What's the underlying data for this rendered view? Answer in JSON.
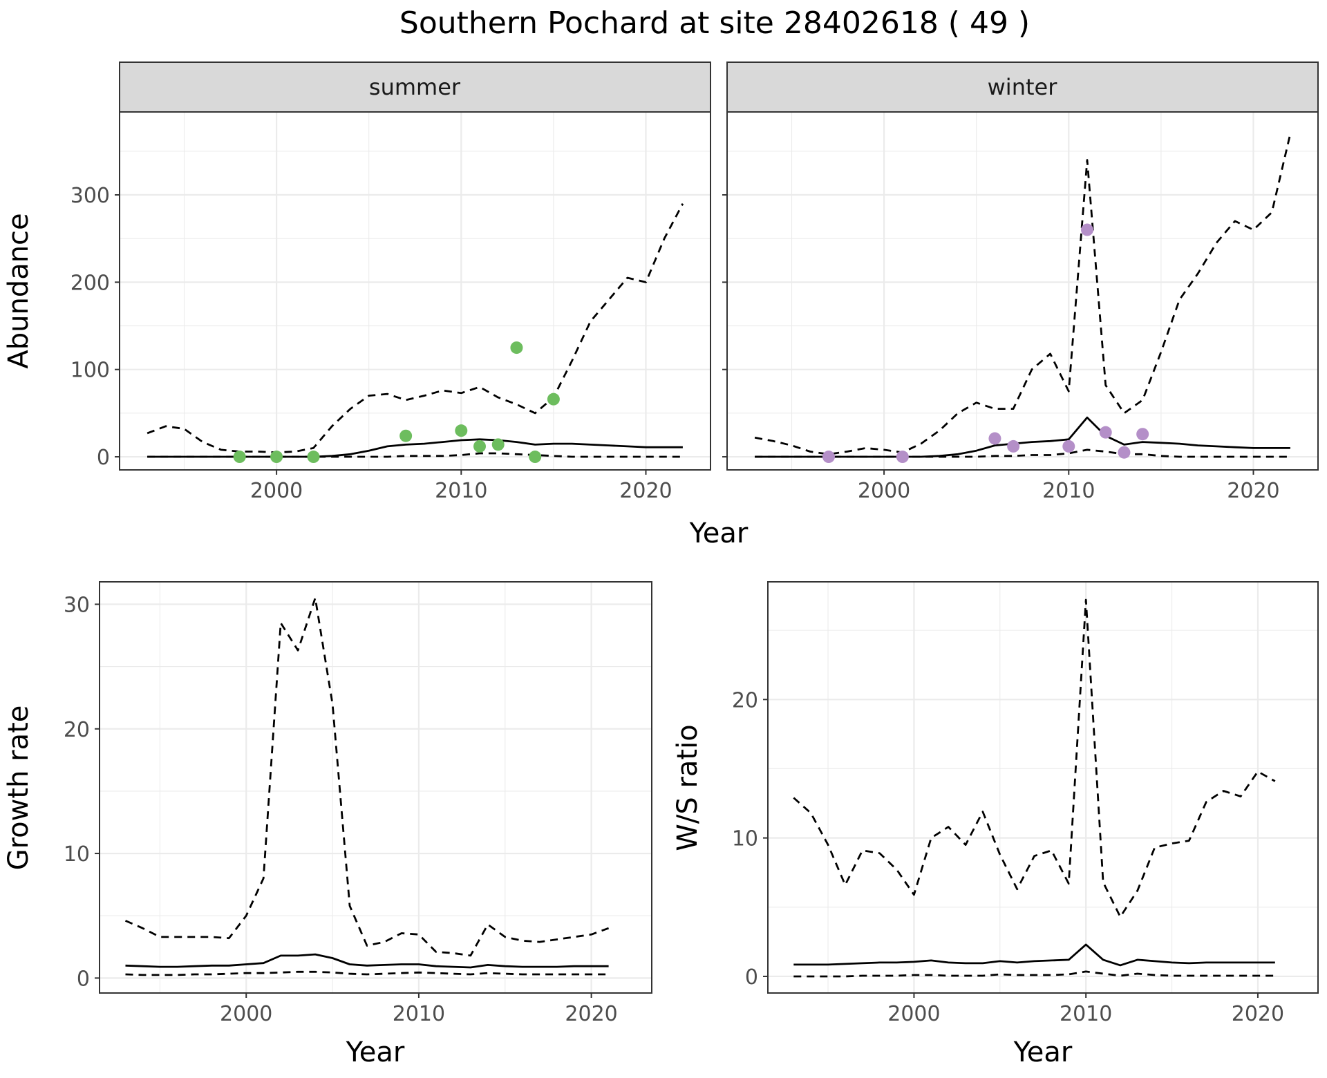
{
  "title": "Southern Pochard at site 28402618 ( 49 )",
  "colors": {
    "summer_points": "#6dbd5e",
    "winter_points": "#b48fc8",
    "lines": "#000000",
    "grid": "#ebebeb",
    "strip_fill": "#d9d9d9",
    "panel_border": "#333333"
  },
  "chart_data": [
    {
      "type": "line",
      "id": "abundance-summer",
      "strip_label": "summer",
      "ylabel": "Abundance",
      "xlabel": "Year",
      "xlim": [
        1991.5,
        2023.5
      ],
      "ylim": [
        -15,
        395
      ],
      "x_ticks": [
        2000,
        2010,
        2020
      ],
      "y_ticks": [
        0,
        100,
        200,
        300
      ],
      "show_y_tick_labels": true,
      "series": [
        {
          "role": "mean",
          "style": "solid",
          "x": [
            1993,
            1994,
            1995,
            1996,
            1997,
            1998,
            1999,
            2000,
            2001,
            2002,
            2003,
            2004,
            2005,
            2006,
            2007,
            2008,
            2009,
            2010,
            2011,
            2012,
            2013,
            2014,
            2015,
            2016,
            2017,
            2018,
            2019,
            2020,
            2021,
            2022
          ],
          "y": [
            0,
            0,
            0,
            0,
            0,
            0,
            0,
            0,
            0,
            0,
            1,
            3,
            7,
            12,
            14,
            15,
            17,
            19,
            20,
            19,
            17,
            14,
            15,
            15,
            14,
            13,
            12,
            11,
            11,
            11
          ]
        },
        {
          "role": "upper",
          "style": "dashed",
          "x": [
            1993,
            1994,
            1995,
            1996,
            1997,
            1998,
            1999,
            2000,
            2001,
            2002,
            2003,
            2004,
            2005,
            2006,
            2007,
            2008,
            2009,
            2010,
            2011,
            2012,
            2013,
            2014,
            2015,
            2016,
            2017,
            2018,
            2019,
            2020,
            2021,
            2022
          ],
          "y": [
            27,
            35,
            32,
            17,
            8,
            6,
            6,
            5,
            6,
            10,
            35,
            55,
            70,
            72,
            65,
            70,
            76,
            73,
            80,
            68,
            60,
            50,
            68,
            110,
            155,
            180,
            205,
            200,
            250,
            290
          ]
        },
        {
          "role": "lower",
          "style": "dashed",
          "x": [
            1993,
            1994,
            1995,
            1996,
            1997,
            1998,
            1999,
            2000,
            2001,
            2002,
            2003,
            2004,
            2005,
            2006,
            2007,
            2008,
            2009,
            2010,
            2011,
            2012,
            2013,
            2014,
            2015,
            2016,
            2017,
            2018,
            2019,
            2020,
            2021,
            2022
          ],
          "y": [
            0,
            0,
            0,
            0,
            0,
            0,
            0,
            0,
            0,
            0,
            0,
            0,
            0,
            0,
            1,
            1,
            1,
            2,
            4,
            4,
            3,
            2,
            1,
            0,
            0,
            0,
            0,
            0,
            0,
            0
          ]
        }
      ],
      "points": {
        "x": [
          1998,
          2000,
          2002,
          2007,
          2010,
          2011,
          2012,
          2013,
          2014,
          2015
        ],
        "y": [
          0,
          0,
          0,
          24,
          30,
          12,
          14,
          125,
          0,
          66
        ]
      }
    },
    {
      "type": "line",
      "id": "abundance-winter",
      "strip_label": "winter",
      "xlabel": "Year",
      "xlim": [
        1991.5,
        2023.5
      ],
      "ylim": [
        -15,
        395
      ],
      "x_ticks": [
        2000,
        2010,
        2020
      ],
      "y_ticks": [
        0,
        100,
        200,
        300
      ],
      "show_y_tick_labels": false,
      "series": [
        {
          "role": "mean",
          "style": "solid",
          "x": [
            1993,
            1994,
            1995,
            1996,
            1997,
            1998,
            1999,
            2000,
            2001,
            2002,
            2003,
            2004,
            2005,
            2006,
            2007,
            2008,
            2009,
            2010,
            2011,
            2012,
            2013,
            2014,
            2015,
            2016,
            2017,
            2018,
            2019,
            2020,
            2021,
            2022
          ],
          "y": [
            0,
            0,
            0,
            0,
            0,
            0,
            0,
            0,
            0,
            0,
            1,
            3,
            7,
            13,
            15,
            17,
            18,
            20,
            45,
            24,
            14,
            17,
            16,
            15,
            13,
            12,
            11,
            10,
            10,
            10
          ]
        },
        {
          "role": "upper",
          "style": "dashed",
          "x": [
            1993,
            1994,
            1995,
            1996,
            1997,
            1998,
            1999,
            2000,
            2001,
            2002,
            2003,
            2004,
            2005,
            2006,
            2007,
            2008,
            2009,
            2010,
            2011,
            2012,
            2013,
            2014,
            2015,
            2016,
            2017,
            2018,
            2019,
            2020,
            2021,
            2022
          ],
          "y": [
            22,
            18,
            13,
            6,
            3,
            6,
            10,
            8,
            5,
            15,
            30,
            50,
            62,
            55,
            55,
            100,
            118,
            75,
            340,
            82,
            50,
            65,
            120,
            180,
            210,
            245,
            270,
            260,
            280,
            370
          ]
        },
        {
          "role": "lower",
          "style": "dashed",
          "x": [
            1993,
            1994,
            1995,
            1996,
            1997,
            1998,
            1999,
            2000,
            2001,
            2002,
            2003,
            2004,
            2005,
            2006,
            2007,
            2008,
            2009,
            2010,
            2011,
            2012,
            2013,
            2014,
            2015,
            2016,
            2017,
            2018,
            2019,
            2020,
            2021,
            2022
          ],
          "y": [
            0,
            0,
            0,
            0,
            0,
            0,
            0,
            0,
            0,
            0,
            0,
            0,
            0,
            1,
            1,
            2,
            2,
            4,
            8,
            6,
            3,
            3,
            1,
            0,
            0,
            0,
            0,
            0,
            0,
            0
          ]
        }
      ],
      "points": {
        "x": [
          1997,
          2001,
          2006,
          2007,
          2010,
          2011,
          2012,
          2013,
          2014
        ],
        "y": [
          0,
          0,
          21,
          12,
          12,
          260,
          28,
          5,
          26
        ]
      }
    },
    {
      "type": "line",
      "id": "growth-rate",
      "ylabel": "Growth rate",
      "xlabel": "Year",
      "xlim": [
        1991.5,
        2023.5
      ],
      "ylim": [
        -1.2,
        31.8
      ],
      "x_ticks": [
        2000,
        2010,
        2020
      ],
      "y_ticks": [
        0,
        10,
        20,
        30
      ],
      "show_y_tick_labels": true,
      "series": [
        {
          "role": "mean",
          "style": "solid",
          "x": [
            1993,
            1994,
            1995,
            1996,
            1997,
            1998,
            1999,
            2000,
            2001,
            2002,
            2003,
            2004,
            2005,
            2006,
            2007,
            2008,
            2009,
            2010,
            2011,
            2012,
            2013,
            2014,
            2015,
            2016,
            2017,
            2018,
            2019,
            2020,
            2021
          ],
          "y": [
            1.0,
            0.95,
            0.9,
            0.9,
            0.95,
            1.0,
            1.0,
            1.1,
            1.2,
            1.8,
            1.8,
            1.9,
            1.6,
            1.1,
            1.0,
            1.05,
            1.1,
            1.1,
            0.95,
            0.9,
            0.85,
            1.05,
            0.95,
            0.9,
            0.9,
            0.9,
            0.95,
            0.95,
            0.95
          ]
        },
        {
          "role": "upper",
          "style": "dashed",
          "x": [
            1993,
            1994,
            1995,
            1996,
            1997,
            1998,
            1999,
            2000,
            2001,
            2002,
            2003,
            2004,
            2005,
            2006,
            2007,
            2008,
            2009,
            2010,
            2011,
            2012,
            2013,
            2014,
            2015,
            2016,
            2017,
            2018,
            2019,
            2020,
            2021
          ],
          "y": [
            4.6,
            4.0,
            3.3,
            3.3,
            3.3,
            3.3,
            3.2,
            5.0,
            8.0,
            28.5,
            26.3,
            30.5,
            22.0,
            5.8,
            2.6,
            2.9,
            3.6,
            3.5,
            2.1,
            2.0,
            1.8,
            4.3,
            3.3,
            3.0,
            2.9,
            3.1,
            3.3,
            3.5,
            4.0
          ]
        },
        {
          "role": "lower",
          "style": "dashed",
          "x": [
            1993,
            1994,
            1995,
            1996,
            1997,
            1998,
            1999,
            2000,
            2001,
            2002,
            2003,
            2004,
            2005,
            2006,
            2007,
            2008,
            2009,
            2010,
            2011,
            2012,
            2013,
            2014,
            2015,
            2016,
            2017,
            2018,
            2019,
            2020,
            2021
          ],
          "y": [
            0.3,
            0.25,
            0.25,
            0.25,
            0.3,
            0.3,
            0.35,
            0.4,
            0.4,
            0.45,
            0.5,
            0.5,
            0.45,
            0.35,
            0.3,
            0.35,
            0.4,
            0.45,
            0.4,
            0.35,
            0.3,
            0.4,
            0.35,
            0.3,
            0.3,
            0.3,
            0.3,
            0.3,
            0.3
          ]
        }
      ]
    },
    {
      "type": "line",
      "id": "ws-ratio",
      "ylabel": "W/S ratio",
      "xlabel": "Year",
      "xlim": [
        1991.5,
        2023.5
      ],
      "ylim": [
        -1.2,
        28.5
      ],
      "x_ticks": [
        2000,
        2010,
        2020
      ],
      "y_ticks": [
        0,
        10,
        20
      ],
      "show_y_tick_labels": true,
      "series": [
        {
          "role": "mean",
          "style": "solid",
          "x": [
            1993,
            1994,
            1995,
            1996,
            1997,
            1998,
            1999,
            2000,
            2001,
            2002,
            2003,
            2004,
            2005,
            2006,
            2007,
            2008,
            2009,
            2010,
            2011,
            2012,
            2013,
            2014,
            2015,
            2016,
            2017,
            2018,
            2019,
            2020,
            2021
          ],
          "y": [
            0.85,
            0.85,
            0.85,
            0.9,
            0.95,
            1.0,
            1.0,
            1.05,
            1.15,
            1.0,
            0.95,
            0.95,
            1.1,
            1.0,
            1.1,
            1.15,
            1.2,
            2.3,
            1.2,
            0.8,
            1.2,
            1.1,
            1.0,
            0.95,
            1.0,
            1.0,
            1.0,
            1.0,
            1.0
          ]
        },
        {
          "role": "upper",
          "style": "dashed",
          "x": [
            1993,
            1994,
            1995,
            1996,
            1997,
            1998,
            1999,
            2000,
            2001,
            2002,
            2003,
            2004,
            2005,
            2006,
            2007,
            2008,
            2009,
            2010,
            2011,
            2012,
            2013,
            2014,
            2015,
            2016,
            2017,
            2018,
            2019,
            2020,
            2021
          ],
          "y": [
            12.9,
            11.8,
            9.5,
            6.6,
            9.1,
            8.9,
            7.7,
            5.9,
            10.0,
            10.8,
            9.5,
            11.9,
            8.8,
            6.3,
            8.7,
            9.1,
            6.7,
            27.2,
            6.8,
            4.3,
            6.2,
            9.3,
            9.6,
            9.8,
            12.6,
            13.4,
            13.0,
            14.8,
            14.1
          ]
        },
        {
          "role": "lower",
          "style": "dashed",
          "x": [
            1993,
            1994,
            1995,
            1996,
            1997,
            1998,
            1999,
            2000,
            2001,
            2002,
            2003,
            2004,
            2005,
            2006,
            2007,
            2008,
            2009,
            2010,
            2011,
            2012,
            2013,
            2014,
            2015,
            2016,
            2017,
            2018,
            2019,
            2020,
            2021
          ],
          "y": [
            0.0,
            0.0,
            0.0,
            0.0,
            0.05,
            0.05,
            0.05,
            0.1,
            0.1,
            0.05,
            0.05,
            0.05,
            0.15,
            0.1,
            0.1,
            0.1,
            0.15,
            0.35,
            0.2,
            0.05,
            0.2,
            0.1,
            0.05,
            0.05,
            0.05,
            0.05,
            0.05,
            0.05,
            0.05
          ]
        }
      ]
    }
  ]
}
